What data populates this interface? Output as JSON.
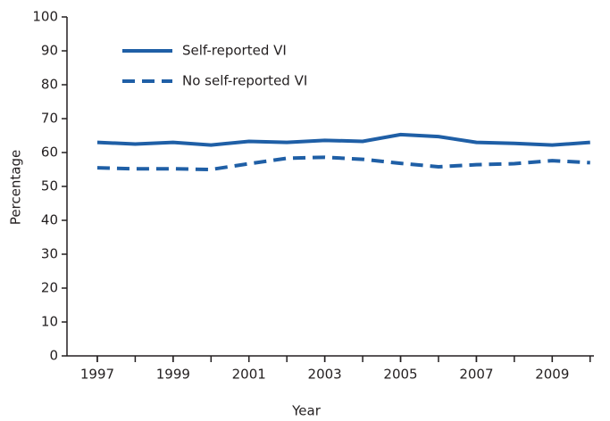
{
  "chart_data": {
    "type": "line",
    "x_label": "Year",
    "y_label": "Percentage",
    "x": [
      1997,
      1998,
      1999,
      2000,
      2001,
      2002,
      2003,
      2004,
      2005,
      2006,
      2007,
      2008,
      2009,
      2010
    ],
    "series": [
      {
        "name": "Self-reported VI",
        "color": "#1f5fa6",
        "dash": false,
        "values": [
          63,
          62.5,
          63,
          62.2,
          63.3,
          63,
          63.6,
          63.3,
          65.3,
          64.7,
          63,
          62.7,
          62.2,
          63
        ]
      },
      {
        "name": "No self-reported VI",
        "color": "#1f5fa6",
        "dash": true,
        "values": [
          55.5,
          55.2,
          55.2,
          55,
          56.7,
          58.3,
          58.6,
          58,
          56.8,
          55.8,
          56.4,
          56.7,
          57.6,
          57
        ]
      }
    ],
    "xlim": [
      1996.2,
      2010.1
    ],
    "xticks": [
      1997,
      1999,
      2001,
      2003,
      2005,
      2007,
      2009
    ],
    "ylim": [
      0,
      100
    ],
    "yticks": [
      0,
      10,
      20,
      30,
      40,
      50,
      60,
      70,
      80,
      90,
      100
    ],
    "legend": "top-left"
  }
}
